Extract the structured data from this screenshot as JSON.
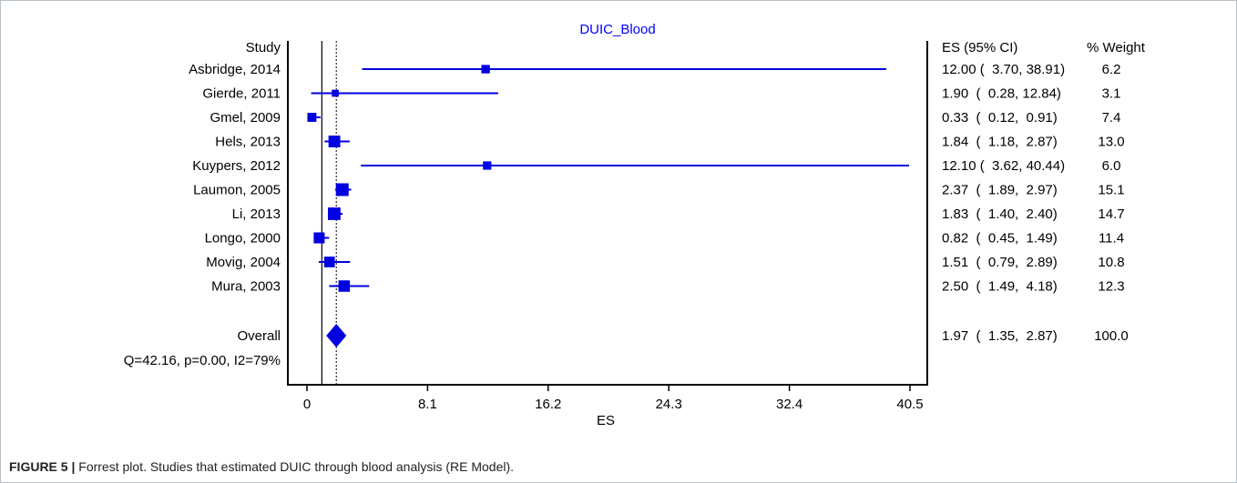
{
  "chart_data": {
    "type": "forest",
    "title": "DUIC_Blood",
    "xlabel": "ES",
    "x_ticks": [
      "0",
      "8.1",
      "16.2",
      "24.3",
      "32.4",
      "40.5"
    ],
    "x_tick_values": [
      0,
      8.1,
      16.2,
      24.3,
      32.4,
      40.5
    ],
    "xlim": [
      -0.8,
      41.3
    ],
    "null_line": 1,
    "overall_line": 1.97,
    "col_headers": {
      "study": "Study",
      "es": "ES (95% CI)",
      "weight": "% Weight"
    },
    "studies": [
      {
        "name": "Asbridge, 2014",
        "es": 12.0,
        "lo": 3.7,
        "hi": 38.91,
        "weight": 6.2,
        "es_text": "12.00 (  3.70, 38.91)",
        "weight_text": "6.2"
      },
      {
        "name": "Gierde, 2011",
        "es": 1.9,
        "lo": 0.28,
        "hi": 12.84,
        "weight": 3.1,
        "es_text": "1.90  (  0.28, 12.84)",
        "weight_text": "3.1"
      },
      {
        "name": "Gmel, 2009",
        "es": 0.33,
        "lo": 0.12,
        "hi": 0.91,
        "weight": 7.4,
        "es_text": "0.33  (  0.12,  0.91)",
        "weight_text": "7.4"
      },
      {
        "name": "Hels, 2013",
        "es": 1.84,
        "lo": 1.18,
        "hi": 2.87,
        "weight": 13.0,
        "es_text": "1.84  (  1.18,  2.87)",
        "weight_text": "13.0"
      },
      {
        "name": "Kuypers, 2012",
        "es": 12.1,
        "lo": 3.62,
        "hi": 40.44,
        "weight": 6.0,
        "es_text": "12.10 (  3.62, 40.44)",
        "weight_text": "6.0"
      },
      {
        "name": "Laumon, 2005",
        "es": 2.37,
        "lo": 1.89,
        "hi": 2.97,
        "weight": 15.1,
        "es_text": "2.37  (  1.89,  2.97)",
        "weight_text": "15.1"
      },
      {
        "name": "Li, 2013",
        "es": 1.83,
        "lo": 1.4,
        "hi": 2.4,
        "weight": 14.7,
        "es_text": "1.83  (  1.40,  2.40)",
        "weight_text": "14.7"
      },
      {
        "name": "Longo, 2000",
        "es": 0.82,
        "lo": 0.45,
        "hi": 1.49,
        "weight": 11.4,
        "es_text": "0.82  (  0.45,  1.49)",
        "weight_text": "11.4"
      },
      {
        "name": "Movig, 2004",
        "es": 1.51,
        "lo": 0.79,
        "hi": 2.89,
        "weight": 10.8,
        "es_text": "1.51  (  0.79,  2.89)",
        "weight_text": "10.8"
      },
      {
        "name": "Mura, 2003",
        "es": 2.5,
        "lo": 1.49,
        "hi": 4.18,
        "weight": 12.3,
        "es_text": "2.50  (  1.49,  4.18)",
        "weight_text": "12.3"
      }
    ],
    "overall": {
      "name": "Overall",
      "es": 1.97,
      "lo": 1.35,
      "hi": 2.87,
      "es_text": "1.97  (  1.35,  2.87)",
      "weight_text": "100.0"
    },
    "heterogeneity": "Q=42.16, p=0.00, I2=79%",
    "colors": {
      "marker": "#0000e0",
      "title": "#0000ff",
      "axis": "#000000"
    }
  },
  "caption": {
    "label": "FIGURE 5 |",
    "text": " Forrest plot. Studies that estimated DUIC through blood analysis (RE Model)."
  }
}
